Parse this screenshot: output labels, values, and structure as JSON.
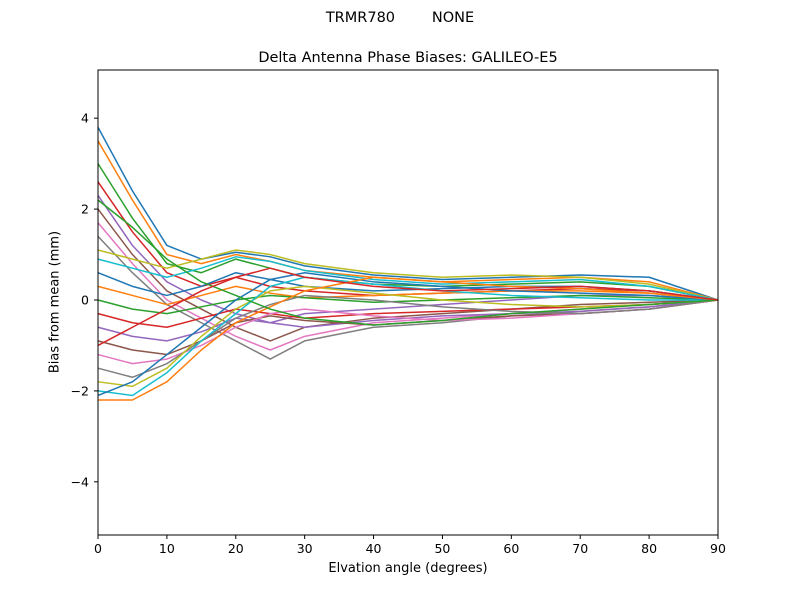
{
  "chart_data": {
    "type": "line",
    "suptitle": "TRMR780        NONE",
    "title": "Delta Antenna Phase Biases: GALILEO-E5",
    "xlabel": "Elvation angle (degrees)",
    "ylabel": "Bias from mean (mm)",
    "xlim": [
      0,
      90
    ],
    "ylim": [
      -5.17,
      5.06
    ],
    "xticks": [
      0,
      10,
      20,
      30,
      40,
      50,
      60,
      70,
      80,
      90
    ],
    "xtick_labels": [
      "0",
      "10",
      "20",
      "30",
      "40",
      "50",
      "60",
      "70",
      "80",
      "90"
    ],
    "yticks": [
      -4,
      -2,
      0,
      2,
      4
    ],
    "ytick_labels": [
      "−4",
      "−2",
      "0",
      "2",
      "4"
    ],
    "grid": false,
    "legend": "none",
    "axes_color": "#000000",
    "background_color": "#ffffff",
    "line_width": 1.5,
    "x": [
      0,
      5,
      10,
      15,
      20,
      25,
      30,
      40,
      50,
      60,
      70,
      80,
      90
    ],
    "series": [
      {
        "name": "series-1",
        "color": "#1f77b4",
        "values": [
          3.8,
          2.4,
          1.2,
          0.9,
          1.05,
          0.95,
          0.75,
          0.55,
          0.45,
          0.5,
          0.55,
          0.5,
          0
        ]
      },
      {
        "name": "series-2",
        "color": "#ff7f0e",
        "values": [
          3.5,
          2.2,
          1.0,
          0.8,
          1.0,
          0.85,
          0.65,
          0.5,
          0.4,
          0.45,
          0.5,
          0.4,
          0
        ]
      },
      {
        "name": "series-3",
        "color": "#2ca02c",
        "values": [
          3.0,
          1.8,
          0.8,
          0.6,
          0.9,
          0.7,
          0.5,
          0.35,
          0.3,
          0.35,
          0.4,
          0.3,
          0
        ]
      },
      {
        "name": "series-4",
        "color": "#d62728",
        "values": [
          2.6,
          1.5,
          0.6,
          0.3,
          0.5,
          0.3,
          0.2,
          0.1,
          0.15,
          0.2,
          0.25,
          0.2,
          0
        ]
      },
      {
        "name": "series-5",
        "color": "#9467bd",
        "values": [
          2.3,
          1.2,
          0.4,
          0.0,
          -0.3,
          -0.5,
          -0.3,
          -0.2,
          -0.1,
          0.0,
          0.1,
          0.1,
          0
        ]
      },
      {
        "name": "series-6",
        "color": "#8c564b",
        "values": [
          2.0,
          1.0,
          0.2,
          -0.2,
          -0.6,
          -0.9,
          -0.6,
          -0.4,
          -0.3,
          -0.2,
          -0.1,
          -0.05,
          0
        ]
      },
      {
        "name": "series-7",
        "color": "#e377c2",
        "values": [
          1.7,
          0.8,
          0.0,
          -0.4,
          -0.8,
          -1.1,
          -0.8,
          -0.5,
          -0.4,
          -0.3,
          -0.2,
          -0.1,
          0
        ]
      },
      {
        "name": "series-8",
        "color": "#7f7f7f",
        "values": [
          1.4,
          0.6,
          -0.1,
          -0.5,
          -0.9,
          -1.3,
          -0.9,
          -0.6,
          -0.5,
          -0.35,
          -0.25,
          -0.15,
          0
        ]
      },
      {
        "name": "series-9",
        "color": "#bcbd22",
        "values": [
          1.1,
          0.9,
          0.7,
          0.9,
          1.1,
          1.0,
          0.8,
          0.6,
          0.5,
          0.55,
          0.5,
          0.35,
          0
        ]
      },
      {
        "name": "series-10",
        "color": "#17becf",
        "values": [
          0.9,
          0.7,
          0.5,
          0.7,
          0.95,
          0.85,
          0.65,
          0.45,
          0.35,
          0.4,
          0.45,
          0.3,
          0
        ]
      },
      {
        "name": "series-11",
        "color": "#1f77b4",
        "values": [
          0.6,
          0.3,
          0.1,
          0.3,
          0.6,
          0.45,
          0.3,
          0.2,
          0.25,
          0.3,
          0.3,
          0.2,
          0
        ]
      },
      {
        "name": "series-12",
        "color": "#ff7f0e",
        "values": [
          0.3,
          0.1,
          -0.1,
          0.1,
          0.3,
          0.15,
          0.05,
          0.1,
          0.15,
          0.2,
          0.2,
          0.15,
          0
        ]
      },
      {
        "name": "series-13",
        "color": "#2ca02c",
        "values": [
          0.0,
          -0.2,
          -0.3,
          -0.15,
          0.0,
          0.1,
          0.05,
          -0.05,
          0.0,
          0.05,
          0.1,
          0.05,
          0
        ]
      },
      {
        "name": "series-14",
        "color": "#d62728",
        "values": [
          -0.3,
          -0.5,
          -0.6,
          -0.4,
          -0.2,
          -0.3,
          -0.4,
          -0.3,
          -0.25,
          -0.2,
          -0.15,
          -0.1,
          0
        ]
      },
      {
        "name": "series-15",
        "color": "#9467bd",
        "values": [
          -0.6,
          -0.8,
          -0.9,
          -0.7,
          -0.4,
          -0.5,
          -0.6,
          -0.45,
          -0.35,
          -0.3,
          -0.25,
          -0.15,
          0
        ]
      },
      {
        "name": "series-16",
        "color": "#8c564b",
        "values": [
          -0.9,
          -1.1,
          -1.2,
          -0.9,
          -0.5,
          -0.35,
          -0.45,
          -0.55,
          -0.45,
          -0.35,
          -0.3,
          -0.2,
          0
        ]
      },
      {
        "name": "series-17",
        "color": "#e377c2",
        "values": [
          -1.2,
          -1.4,
          -1.3,
          -1.0,
          -0.6,
          -0.3,
          -0.2,
          -0.35,
          -0.45,
          -0.4,
          -0.3,
          -0.2,
          0
        ]
      },
      {
        "name": "series-18",
        "color": "#7f7f7f",
        "values": [
          -1.5,
          -1.7,
          -1.4,
          -0.9,
          -0.4,
          -0.1,
          0.1,
          0.0,
          -0.15,
          -0.25,
          -0.3,
          -0.2,
          0
        ]
      },
      {
        "name": "series-19",
        "color": "#bcbd22",
        "values": [
          -1.8,
          -1.9,
          -1.5,
          -0.8,
          -0.2,
          0.2,
          0.3,
          0.15,
          0.0,
          -0.1,
          -0.15,
          -0.1,
          0
        ]
      },
      {
        "name": "series-20",
        "color": "#17becf",
        "values": [
          -2.0,
          -2.1,
          -1.6,
          -0.9,
          -0.3,
          0.3,
          0.5,
          0.35,
          0.2,
          0.1,
          0.05,
          0.0,
          0
        ]
      },
      {
        "name": "series-21",
        "color": "#1f77b4",
        "values": [
          -2.1,
          -1.8,
          -1.2,
          -0.6,
          0.0,
          0.45,
          0.6,
          0.4,
          0.3,
          0.2,
          0.15,
          0.1,
          0
        ]
      },
      {
        "name": "series-22",
        "color": "#ff7f0e",
        "values": [
          -2.2,
          -2.2,
          -1.8,
          -1.1,
          -0.5,
          -0.15,
          0.2,
          0.5,
          0.4,
          0.3,
          0.25,
          0.15,
          0
        ]
      },
      {
        "name": "series-23",
        "color": "#2ca02c",
        "values": [
          2.2,
          1.6,
          0.9,
          0.4,
          0.1,
          -0.2,
          -0.4,
          -0.55,
          -0.45,
          -0.3,
          -0.2,
          -0.1,
          0
        ]
      },
      {
        "name": "series-24",
        "color": "#d62728",
        "values": [
          -1.0,
          -0.6,
          -0.2,
          0.2,
          0.5,
          0.7,
          0.5,
          0.3,
          0.2,
          0.25,
          0.3,
          0.2,
          0
        ]
      }
    ]
  }
}
